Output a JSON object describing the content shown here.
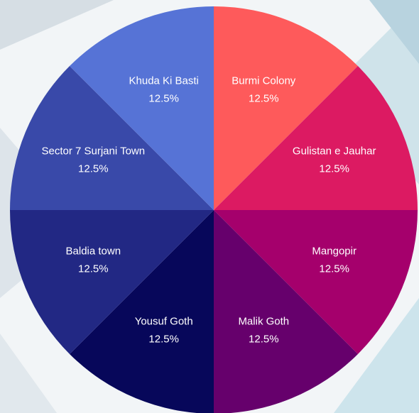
{
  "chart_data": {
    "type": "pie",
    "categories": [
      "Burmi Colony",
      "Gulistan e Jauhar",
      "Mangopir",
      "Malik Goth",
      "Yousuf Goth",
      "Baldia town",
      "Sector 7 Surjani Town",
      "Khuda Ki Basti"
    ],
    "values": [
      12.5,
      12.5,
      12.5,
      12.5,
      12.5,
      12.5,
      12.5,
      12.5
    ],
    "value_labels": [
      "12.5%",
      "12.5%",
      "12.5%",
      "12.5%",
      "12.5%",
      "12.5%",
      "12.5%",
      "12.5%"
    ],
    "colors": [
      "#fe5a5b",
      "#dc1a62",
      "#a5006c",
      "#66006c",
      "#07075a",
      "#222884",
      "#3949a9",
      "#5673d6"
    ]
  }
}
